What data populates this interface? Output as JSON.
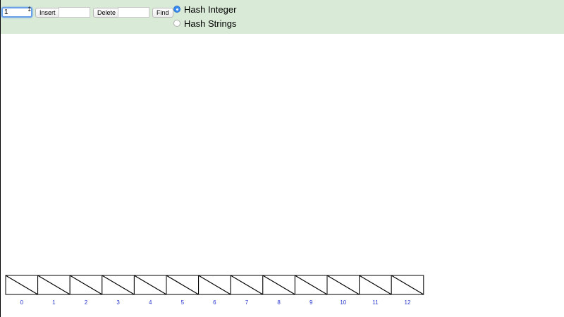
{
  "controls": {
    "input_value": "1",
    "insert_label": "Insert",
    "delete_label": "Delete",
    "find_label": "Find",
    "spin_glyph": "↕"
  },
  "hash_mode": {
    "options": [
      {
        "label": "Hash Integer",
        "selected": true
      },
      {
        "label": "Hash Strings",
        "selected": false
      }
    ]
  },
  "colors": {
    "toolbar_bg": "#d9ead7",
    "radio_selected": "#3b8cf0",
    "index_label": "#2233cc"
  },
  "hash_table": {
    "slots": [
      {
        "index": "0",
        "value": null
      },
      {
        "index": "1",
        "value": null
      },
      {
        "index": "2",
        "value": null
      },
      {
        "index": "3",
        "value": null
      },
      {
        "index": "4",
        "value": null
      },
      {
        "index": "5",
        "value": null
      },
      {
        "index": "6",
        "value": null
      },
      {
        "index": "7",
        "value": null
      },
      {
        "index": "8",
        "value": null
      },
      {
        "index": "9",
        "value": null
      },
      {
        "index": "10",
        "value": null
      },
      {
        "index": "11",
        "value": null
      },
      {
        "index": "12",
        "value": null
      }
    ]
  }
}
